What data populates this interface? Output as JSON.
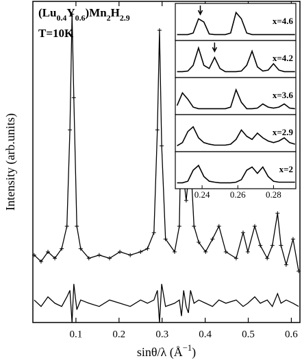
{
  "chart_data": [
    {
      "type": "powder",
      "title": [
        {
          "text": "(Lu"
        },
        {
          "text": "0.4",
          "sub": true
        },
        {
          "text": "Y"
        },
        {
          "text": "0.6",
          "sub": true
        },
        {
          "text": ")Mn"
        },
        {
          "text": "2",
          "sub": true
        },
        {
          "text": "H"
        },
        {
          "text": "2.9",
          "sub": true
        }
      ],
      "annotation": "T=10K",
      "xlabel": [
        {
          "text": "sinθ/λ (Å"
        },
        {
          "text": "−1",
          "sup": true
        },
        {
          "text": ")"
        }
      ],
      "ylabel": "Intensity (arb.units)",
      "x": [
        0.003,
        0.019,
        0.035,
        0.051,
        0.067,
        0.079,
        0.086,
        0.091,
        0.095,
        0.102,
        0.111,
        0.13,
        0.154,
        0.178,
        0.202,
        0.226,
        0.25,
        0.266,
        0.281,
        0.289,
        0.294,
        0.299,
        0.308,
        0.329,
        0.34,
        0.345,
        0.35,
        0.356,
        0.361,
        0.366,
        0.374,
        0.385,
        0.401,
        0.417,
        0.432,
        0.448,
        0.472,
        0.488,
        0.499,
        0.515,
        0.528,
        0.544,
        0.556,
        0.568,
        0.576,
        0.588,
        0.604,
        0.617
      ],
      "series": [
        {
          "marker": "+",
          "line": true,
          "color": "#000000",
          "values": [
            21,
            19,
            22,
            20,
            23,
            30,
            60,
            96,
            70,
            30,
            23,
            20,
            21,
            20,
            22,
            21,
            22,
            23,
            28,
            60,
            91,
            55,
            26,
            22,
            30,
            68,
            45,
            38,
            45,
            51,
            30,
            25,
            22,
            26,
            30,
            22,
            20,
            28,
            22,
            30,
            24,
            20,
            24,
            34,
            24,
            18,
            26,
            16
          ]
        },
        {
          "line": true,
          "color": "#000000",
          "values": [
            7,
            5,
            8,
            6,
            5,
            8,
            10,
            0,
            12,
            4,
            7,
            6,
            5,
            7,
            6,
            5,
            7,
            6,
            7,
            10,
            0,
            12,
            5,
            6,
            7,
            2,
            10,
            5,
            3,
            10,
            6,
            7,
            6,
            5,
            7,
            6,
            7,
            5,
            6,
            8,
            6,
            7,
            5,
            9,
            6,
            7,
            6,
            5
          ]
        }
      ],
      "xlim": [
        0,
        0.62
      ],
      "xticks": [
        0.1,
        0.2,
        0.3,
        0.4,
        0.5,
        0.6
      ],
      "ylim": [
        0,
        100
      ]
    },
    {
      "type": "stacked-line",
      "x": [
        0.226,
        0.229,
        0.232,
        0.235,
        0.238,
        0.241,
        0.244,
        0.247,
        0.25,
        0.253,
        0.256,
        0.259,
        0.262,
        0.265,
        0.268,
        0.271,
        0.274,
        0.277,
        0.28,
        0.283,
        0.286,
        0.289,
        0.292
      ],
      "xlim": [
        0.225,
        0.2925
      ],
      "xticks": [
        0.24,
        0.26,
        0.28
      ],
      "ylim": [
        0,
        1
      ],
      "color": "#000000",
      "panels": [
        {
          "label": "x=4.6",
          "arrow": 0.239,
          "values": [
            0.1,
            0.1,
            0.1,
            0.15,
            0.6,
            0.5,
            0.12,
            0.1,
            0.1,
            0.1,
            0.15,
            0.8,
            0.6,
            0.15,
            0.1,
            0.1,
            0.1,
            0.1,
            0.1,
            0.1,
            0.1,
            0.1,
            0.1
          ]
        },
        {
          "label": "x=4.2",
          "arrow": 0.247,
          "values": [
            0.1,
            0.1,
            0.12,
            0.3,
            0.85,
            0.3,
            0.2,
            0.55,
            0.2,
            0.1,
            0.1,
            0.1,
            0.12,
            0.3,
            0.75,
            0.25,
            0.12,
            0.15,
            0.35,
            0.15,
            0.1,
            0.1,
            0.1
          ]
        },
        {
          "label": "x=3.6",
          "values": [
            0.2,
            0.6,
            0.4,
            0.15,
            0.1,
            0.1,
            0.1,
            0.1,
            0.1,
            0.1,
            0.15,
            0.7,
            0.3,
            0.1,
            0.1,
            0.12,
            0.25,
            0.15,
            0.12,
            0.15,
            0.25,
            0.12,
            0.1
          ]
        },
        {
          "label": "x=2.9",
          "values": [
            0.1,
            0.2,
            0.55,
            0.7,
            0.35,
            0.2,
            0.15,
            0.12,
            0.12,
            0.12,
            0.15,
            0.3,
            0.6,
            0.4,
            0.3,
            0.5,
            0.35,
            0.25,
            0.2,
            0.25,
            0.35,
            0.2,
            0.15
          ]
        },
        {
          "label": "x=2",
          "values": [
            0.1,
            0.1,
            0.15,
            0.5,
            0.65,
            0.3,
            0.15,
            0.12,
            0.1,
            0.1,
            0.1,
            0.12,
            0.2,
            0.5,
            0.6,
            0.4,
            0.6,
            0.3,
            0.15,
            0.12,
            0.12,
            0.12,
            0.12
          ]
        }
      ]
    }
  ]
}
